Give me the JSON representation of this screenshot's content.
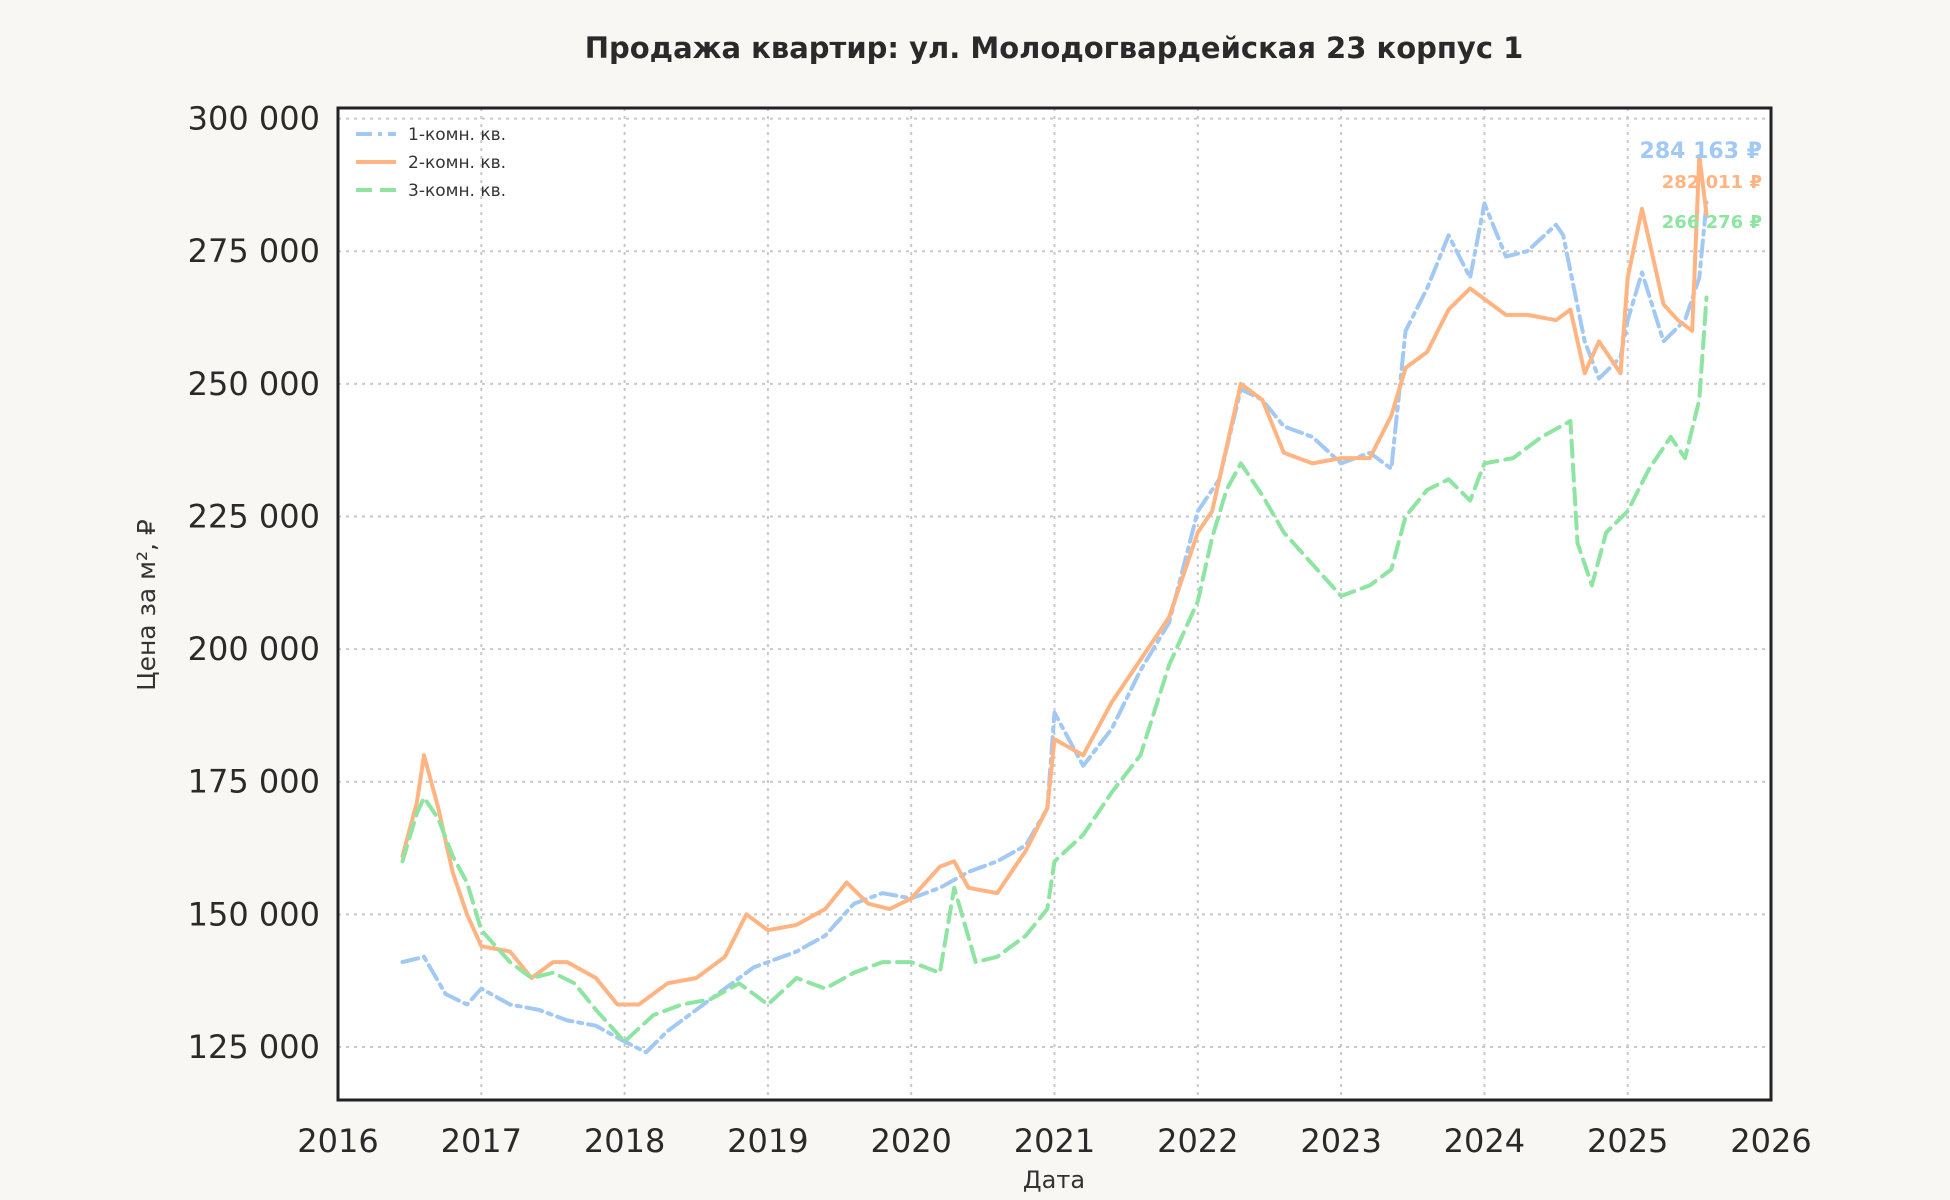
{
  "chart_data": {
    "type": "line",
    "title": "Продажа квартир: ул. Молодогвардейская 23 корпус 1",
    "xlabel": "Дата",
    "ylabel": "Цена за м², ₽",
    "xlim": [
      2016.0,
      2026.0
    ],
    "ylim": [
      115000,
      302000
    ],
    "x_ticks": [
      2016,
      2017,
      2018,
      2019,
      2020,
      2021,
      2022,
      2023,
      2024,
      2025,
      2026
    ],
    "x_tick_labels": [
      "2016",
      "2017",
      "2018",
      "2019",
      "2020",
      "2021",
      "2022",
      "2023",
      "2024",
      "2025",
      "2026"
    ],
    "y_ticks": [
      125000,
      150000,
      175000,
      200000,
      225000,
      250000,
      275000,
      300000
    ],
    "y_tick_labels": [
      "125 000",
      "150 000",
      "175 000",
      "200 000",
      "225 000",
      "250 000",
      "275 000",
      "300 000"
    ],
    "grid": true,
    "legend_position": "top-left",
    "series": [
      {
        "name": "1-комн. кв.",
        "color": "#a1c9f4",
        "dash": "dashdot",
        "last_value_label": "284 163 ₽",
        "x": [
          2016.45,
          2016.6,
          2016.75,
          2016.9,
          2017.0,
          2017.2,
          2017.4,
          2017.6,
          2017.8,
          2018.0,
          2018.15,
          2018.3,
          2018.5,
          2018.7,
          2018.9,
          2019.0,
          2019.2,
          2019.4,
          2019.6,
          2019.8,
          2020.0,
          2020.2,
          2020.4,
          2020.6,
          2020.8,
          2020.95,
          2021.0,
          2021.2,
          2021.4,
          2021.6,
          2021.8,
          2022.0,
          2022.15,
          2022.3,
          2022.45,
          2022.6,
          2022.8,
          2023.0,
          2023.2,
          2023.35,
          2023.45,
          2023.6,
          2023.75,
          2023.9,
          2024.0,
          2024.15,
          2024.3,
          2024.5,
          2024.55,
          2024.7,
          2024.8,
          2024.95,
          2025.0,
          2025.1,
          2025.25,
          2025.4,
          2025.5,
          2025.55
        ],
        "y": [
          141000,
          142000,
          135000,
          133000,
          136000,
          133000,
          132000,
          130000,
          129000,
          126000,
          124000,
          128000,
          132000,
          136000,
          140000,
          141000,
          143000,
          146000,
          152000,
          154000,
          153000,
          155000,
          158000,
          160000,
          163000,
          170000,
          188000,
          178000,
          185000,
          196000,
          205000,
          226000,
          232000,
          249000,
          247000,
          242000,
          240000,
          235000,
          237000,
          234000,
          260000,
          268000,
          278000,
          270000,
          284000,
          274000,
          275000,
          280000,
          278000,
          258000,
          251000,
          255000,
          262000,
          271000,
          258000,
          262000,
          270000,
          284163
        ]
      },
      {
        "name": "2-комн. кв.",
        "color": "#ffb482",
        "dash": "solid",
        "last_value_label": "282 011 ₽",
        "x": [
          2016.45,
          2016.55,
          2016.6,
          2016.7,
          2016.8,
          2016.9,
          2017.0,
          2017.2,
          2017.35,
          2017.5,
          2017.6,
          2017.8,
          2017.95,
          2018.1,
          2018.3,
          2018.5,
          2018.7,
          2018.85,
          2019.0,
          2019.2,
          2019.4,
          2019.55,
          2019.7,
          2019.85,
          2020.0,
          2020.2,
          2020.3,
          2020.4,
          2020.6,
          2020.8,
          2020.95,
          2021.0,
          2021.2,
          2021.4,
          2021.6,
          2021.8,
          2022.0,
          2022.1,
          2022.2,
          2022.3,
          2022.45,
          2022.6,
          2022.8,
          2023.0,
          2023.2,
          2023.35,
          2023.45,
          2023.6,
          2023.75,
          2023.9,
          2024.0,
          2024.15,
          2024.3,
          2024.5,
          2024.6,
          2024.7,
          2024.8,
          2024.95,
          2025.0,
          2025.1,
          2025.25,
          2025.35,
          2025.45,
          2025.5,
          2025.55
        ],
        "y": [
          161000,
          171000,
          180000,
          170000,
          158000,
          150000,
          144000,
          143000,
          138000,
          141000,
          141000,
          138000,
          133000,
          133000,
          137000,
          138000,
          142000,
          150000,
          147000,
          148000,
          151000,
          156000,
          152000,
          151000,
          153000,
          159000,
          160000,
          155000,
          154000,
          162000,
          170000,
          183000,
          180000,
          190000,
          198000,
          206000,
          222000,
          226000,
          238000,
          250000,
          247000,
          237000,
          235000,
          236000,
          236000,
          244000,
          253000,
          256000,
          264000,
          268000,
          266000,
          263000,
          263000,
          262000,
          264000,
          252000,
          258000,
          252000,
          270000,
          283000,
          265000,
          262000,
          260000,
          293000,
          282011
        ]
      },
      {
        "name": "3-комн. кв.",
        "color": "#8de5a1",
        "dash": "dashed",
        "last_value_label": "266 276 ₽",
        "x": [
          2016.45,
          2016.55,
          2016.6,
          2016.7,
          2016.8,
          2016.9,
          2017.0,
          2017.2,
          2017.35,
          2017.5,
          2017.65,
          2017.8,
          2018.0,
          2018.2,
          2018.4,
          2018.6,
          2018.8,
          2019.0,
          2019.2,
          2019.4,
          2019.6,
          2019.8,
          2020.0,
          2020.2,
          2020.3,
          2020.45,
          2020.6,
          2020.8,
          2020.95,
          2021.0,
          2021.2,
          2021.4,
          2021.6,
          2021.8,
          2022.0,
          2022.1,
          2022.2,
          2022.3,
          2022.45,
          2022.6,
          2022.8,
          2023.0,
          2023.2,
          2023.35,
          2023.45,
          2023.6,
          2023.75,
          2023.9,
          2024.0,
          2024.2,
          2024.4,
          2024.6,
          2024.65,
          2024.75,
          2024.85,
          2025.0,
          2025.15,
          2025.3,
          2025.4,
          2025.5,
          2025.55
        ],
        "y": [
          160000,
          169000,
          172000,
          168000,
          161000,
          156000,
          147000,
          141000,
          138000,
          139000,
          137000,
          132000,
          126000,
          131000,
          133000,
          134000,
          137000,
          133000,
          138000,
          136000,
          139000,
          141000,
          141000,
          139000,
          155000,
          141000,
          142000,
          146000,
          151000,
          160000,
          165000,
          173000,
          180000,
          197000,
          209000,
          221000,
          230000,
          235000,
          229000,
          222000,
          216000,
          210000,
          212000,
          215000,
          225000,
          230000,
          232000,
          228000,
          235000,
          236000,
          240000,
          243000,
          220000,
          212000,
          222000,
          226000,
          234000,
          240000,
          236000,
          247000,
          266276
        ]
      }
    ]
  }
}
